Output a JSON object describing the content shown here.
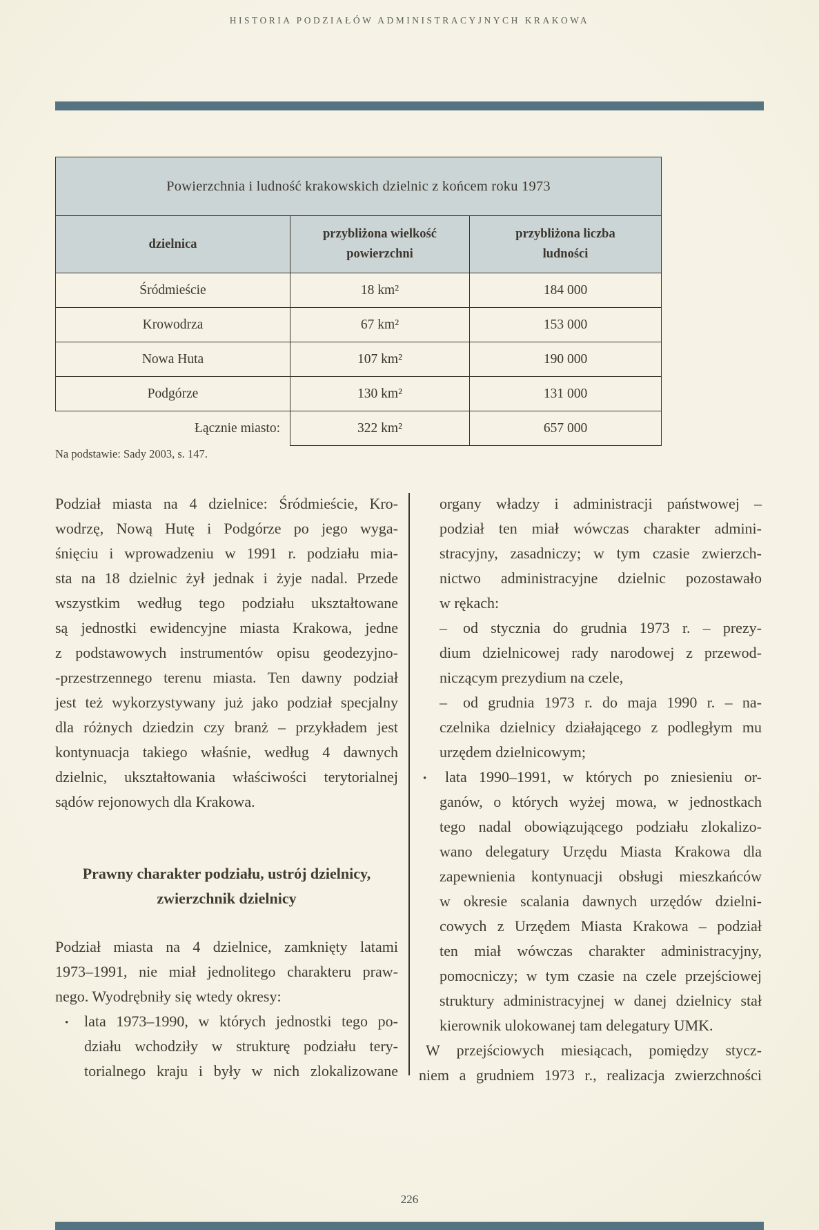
{
  "page": {
    "running_header": "HISTORIA PODZIAŁÓW ADMINISTRACYJNYCH KRAKOWA",
    "page_number": "226",
    "colors": {
      "background": "#f5f2e4",
      "rule_accent": "#557380",
      "table_band": "#ccd5d6",
      "table_border": "#35332b",
      "text": "#413a2e"
    }
  },
  "table": {
    "title": "Powierzchnia i ludność krakowskich dzielnic z końcem roku 1973",
    "headers": [
      "dzielnica",
      "przybliżona wielkość\npowierzchni",
      "przybliżona liczba\nludności"
    ],
    "rows": [
      {
        "dzielnica": "Śródmieście",
        "area": "18 km²",
        "population": "184 000"
      },
      {
        "dzielnica": "Krowodrza",
        "area": "67 km²",
        "population": "153 000"
      },
      {
        "dzielnica": "Nowa Huta",
        "area": "107 km²",
        "population": "190 000"
      },
      {
        "dzielnica": "Podgórze",
        "area": "130 km²",
        "population": "131 000"
      }
    ],
    "total_row": {
      "label": "Łącznie miasto:",
      "area": "322 km²",
      "population": "657 000"
    },
    "footnote": "Na podstawie: Sady 2003, s. 147."
  },
  "left_column": {
    "para1_lines": [
      {
        "style": "j",
        "text": "Podział miasta na 4 dzielnice: Śródmieście, Kro-"
      },
      {
        "style": "j",
        "text": "wodrzę, Nową Hutę i Podgórze po jego wyga-"
      },
      {
        "style": "j",
        "text": "śnięciu i wprowadzeniu w 1991 r. podziału mia-"
      },
      {
        "style": "j",
        "text": "sta na 18 dzielnic żył jednak i żyje nadal. Przede"
      },
      {
        "style": "j",
        "text": "wszystkim według tego podziału ukształtowane"
      },
      {
        "style": "j",
        "text": "są jednostki ewidencyjne miasta Krakowa, jedne"
      },
      {
        "style": "j",
        "text": "z podstawowych instrumentów opisu geodezyjno-"
      },
      {
        "style": "j",
        "text": "-przestrzennego terenu miasta. Ten dawny podział"
      },
      {
        "style": "j",
        "text": "jest też wykorzystywany już jako podział specjalny"
      },
      {
        "style": "j",
        "text": "dla różnych dziedzin czy branż – przykładem jest"
      },
      {
        "style": "j",
        "text": "kontynuacja takiego właśnie, według 4 dawnych"
      },
      {
        "style": "j",
        "text": "dzielnic, ukształtowania właściwości terytorialnej"
      },
      {
        "style": "last",
        "text": "sądów rejonowych dla Krakowa."
      }
    ],
    "heading": {
      "line1": "Prawny charakter podziału, ustrój dzielnicy,",
      "line2": "zwierzchnik dzielnicy"
    },
    "para2_lines": [
      {
        "style": "j",
        "text": "Podział miasta na 4 dzielnice, zamknięty latami"
      },
      {
        "style": "j",
        "text": "1973–1991, nie miał jednolitego charakteru praw-"
      },
      {
        "style": "last",
        "text": "nego. Wyodrębniły się wtedy okresy:"
      },
      {
        "style": "bullet",
        "marker": "•",
        "text": "lata 1973–1990, w których jednostki tego po-"
      },
      {
        "style": "bcont",
        "text": "działu wchodziły w strukturę podziału tery-"
      },
      {
        "style": "bcont",
        "text": "torialnego kraju i były w nich zlokalizowane"
      }
    ]
  },
  "right_column": {
    "lines": [
      {
        "style": "ind",
        "text": "organy władzy i administracji państwowej –"
      },
      {
        "style": "ind",
        "text": "podział ten miał wówczas charakter admini-"
      },
      {
        "style": "ind",
        "text": "stracyjny, zasadniczy; w tym czasie zwierzch-"
      },
      {
        "style": "ind",
        "text": "nictwo administracyjne dzielnic pozostawało"
      },
      {
        "style": "ind-last",
        "text": "w rękach:"
      },
      {
        "style": "dash",
        "marker": "–",
        "text": "od stycznia do grudnia 1973 r. – prezy-"
      },
      {
        "style": "ind",
        "text": "dium dzielnicowej rady narodowej z przewod-"
      },
      {
        "style": "ind-last",
        "text": "niczącym prezydium na czele,"
      },
      {
        "style": "dash",
        "marker": "–",
        "text": "od grudnia 1973 r. do maja 1990 r. – na-"
      },
      {
        "style": "ind",
        "text": "czelnika dzielnicy działającego z podległym mu"
      },
      {
        "style": "ind-last",
        "text": "urzędem dzielnicowym;"
      },
      {
        "style": "bullet2",
        "marker": "•",
        "text": "lata 1990–1991, w których po zniesieniu or-"
      },
      {
        "style": "ind",
        "text": "ganów, o których wyżej mowa, w jednostkach"
      },
      {
        "style": "ind",
        "text": "tego nadal obowiązującego podziału zlokalizo-"
      },
      {
        "style": "ind",
        "text": "wano delegatury Urzędu Miasta Krakowa dla"
      },
      {
        "style": "ind",
        "text": "zapewnienia kontynuacji obsługi mieszkańców"
      },
      {
        "style": "ind",
        "text": "w okresie scalania dawnych urzędów dzielni-"
      },
      {
        "style": "ind",
        "text": "cowych z Urzędem Miasta Krakowa – podział"
      },
      {
        "style": "ind",
        "text": "ten miał wówczas charakter administracyjny,"
      },
      {
        "style": "ind",
        "text": "pomocniczy; w tym czasie na czele przejściowej"
      },
      {
        "style": "ind",
        "text": "struktury administracyjnej w danej dzielnicy stał"
      },
      {
        "style": "ind-last",
        "text": "kierownik ulokowanej tam delegatury UMK."
      },
      {
        "style": "pfirst",
        "text": "W przejściowych miesiącach, pomiędzy stycz-"
      },
      {
        "style": "j",
        "text": "niem a grudniem 1973 r., realizacja zwierzchności"
      }
    ]
  }
}
